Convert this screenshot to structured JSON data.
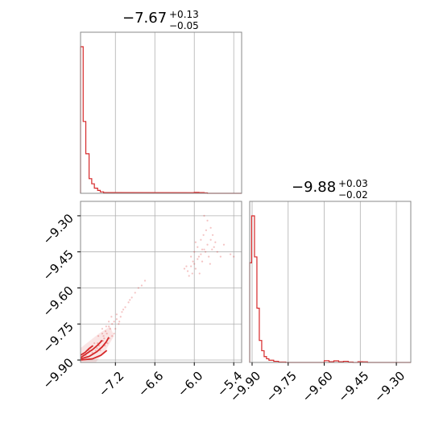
{
  "chart_data": {
    "type": "corner",
    "color": "#d62728",
    "grid": true,
    "params": [
      {
        "title": {
          "value": "−7.67",
          "plus": "+0.13",
          "minus": "−0.05"
        },
        "hist": {
          "bins": [
            [
              -7.73,
              -7.69,
              1.0
            ],
            [
              -7.69,
              -7.65,
              0.49
            ],
            [
              -7.65,
              -7.6,
              0.27
            ],
            [
              -7.6,
              -7.56,
              0.1
            ],
            [
              -7.56,
              -7.52,
              0.065
            ],
            [
              -7.52,
              -7.47,
              0.035
            ],
            [
              -7.47,
              -7.43,
              0.02
            ],
            [
              -7.43,
              -7.38,
              0.01
            ],
            [
              -7.38,
              -7.26,
              0.005
            ],
            [
              -6.1,
              -6.0,
              0.004
            ],
            [
              -6.0,
              -5.93,
              0.006
            ],
            [
              -5.93,
              -5.85,
              0.005
            ],
            [
              -5.85,
              -5.8,
              0.003
            ]
          ]
        },
        "range": [
          -7.73,
          -5.28
        ],
        "ticks": [
          -7.2,
          -6.6,
          -6.0,
          -5.4
        ],
        "tick_labels": [
          "−7.2",
          "−6.6",
          "−6.0",
          "−5.4"
        ]
      },
      {
        "title": {
          "value": "−9.88",
          "plus": "+0.03",
          "minus": "−0.02"
        },
        "hist": {
          "bins": [
            [
              -9.91,
              -9.902,
              0.68
            ],
            [
              -9.902,
              -9.89,
              1.0
            ],
            [
              -9.89,
              -9.88,
              0.72
            ],
            [
              -9.88,
              -9.87,
              0.37
            ],
            [
              -9.87,
              -9.86,
              0.15
            ],
            [
              -9.86,
              -9.85,
              0.08
            ],
            [
              -9.85,
              -9.84,
              0.04
            ],
            [
              -9.84,
              -9.83,
              0.025
            ],
            [
              -9.83,
              -9.81,
              0.015
            ],
            [
              -9.81,
              -9.79,
              0.008
            ],
            [
              -9.79,
              -9.76,
              0.003
            ],
            [
              -9.76,
              -9.7,
              0.0
            ],
            [
              -9.7,
              -9.6,
              0.0
            ],
            [
              -9.6,
              -9.58,
              0.012
            ],
            [
              -9.58,
              -9.56,
              0.005
            ],
            [
              -9.56,
              -9.54,
              0.011
            ],
            [
              -9.54,
              -9.52,
              0.005
            ],
            [
              -9.52,
              -9.5,
              0.008
            ],
            [
              -9.5,
              -9.48,
              0.003
            ],
            [
              -9.48,
              -9.46,
              0.0
            ],
            [
              -9.46,
              -9.44,
              0.005
            ],
            [
              -9.44,
              -9.42,
              0.004
            ]
          ]
        },
        "range": [
          -9.91,
          -9.24
        ],
        "ticks": [
          -9.9,
          -9.75,
          -9.6,
          -9.45,
          -9.3
        ],
        "tick_labels": [
          "−9.90",
          "−9.75",
          "−9.60",
          "−9.45",
          "−9.30"
        ]
      }
    ],
    "scatter": {
      "x_param": 0,
      "y_param": 1,
      "points": [
        [
          -7.4,
          -9.79
        ],
        [
          -7.38,
          -9.8
        ],
        [
          -7.42,
          -9.82
        ],
        [
          -7.35,
          -9.78
        ],
        [
          -7.45,
          -9.84
        ],
        [
          -7.3,
          -9.76
        ],
        [
          -7.33,
          -9.79
        ],
        [
          -7.28,
          -9.77
        ],
        [
          -7.25,
          -9.75
        ],
        [
          -7.22,
          -9.74
        ],
        [
          -7.2,
          -9.77
        ],
        [
          -7.18,
          -9.73
        ],
        [
          -7.15,
          -9.75
        ],
        [
          -7.25,
          -9.8
        ],
        [
          -7.32,
          -9.83
        ],
        [
          -7.37,
          -9.81
        ],
        [
          -7.5,
          -9.86
        ],
        [
          -7.55,
          -9.87
        ],
        [
          -7.48,
          -9.85
        ],
        [
          -7.43,
          -9.86
        ],
        [
          -7.36,
          -9.84
        ],
        [
          -7.29,
          -9.81
        ],
        [
          -7.22,
          -9.79
        ],
        [
          -7.12,
          -9.72
        ],
        [
          -7.05,
          -9.68
        ],
        [
          -7.0,
          -9.66
        ],
        [
          -6.95,
          -9.64
        ],
        [
          -6.9,
          -9.62
        ],
        [
          -6.85,
          -9.6
        ],
        [
          -7.1,
          -9.7
        ],
        [
          -7.08,
          -9.69
        ],
        [
          -6.98,
          -9.65
        ],
        [
          -6.8,
          -9.59
        ],
        [
          -6.75,
          -9.57
        ],
        [
          -7.3,
          -9.74
        ],
        [
          -7.4,
          -9.77
        ],
        [
          -7.6,
          -9.86
        ],
        [
          -7.65,
          -9.88
        ],
        [
          -7.58,
          -9.85
        ],
        [
          -7.52,
          -9.83
        ],
        [
          -7.46,
          -9.8
        ],
        [
          -7.34,
          -9.76
        ],
        [
          -7.26,
          -9.72
        ],
        [
          -7.18,
          -9.71
        ],
        [
          -7.14,
          -9.74
        ],
        [
          -7.68,
          -9.88
        ],
        [
          -7.62,
          -9.87
        ],
        [
          -7.56,
          -9.86
        ],
        [
          -7.47,
          -9.83
        ],
        [
          -7.39,
          -9.82
        ],
        [
          -6.1,
          -9.53
        ],
        [
          -6.05,
          -9.51
        ],
        [
          -6.0,
          -9.5
        ],
        [
          -5.95,
          -9.48
        ],
        [
          -5.9,
          -9.46
        ],
        [
          -5.85,
          -9.44
        ],
        [
          -5.8,
          -9.42
        ],
        [
          -5.75,
          -9.4
        ],
        [
          -5.7,
          -9.43
        ],
        [
          -5.65,
          -9.45
        ],
        [
          -6.08,
          -9.55
        ],
        [
          -6.02,
          -9.49
        ],
        [
          -5.98,
          -9.52
        ],
        [
          -5.93,
          -9.47
        ],
        [
          -5.88,
          -9.49
        ],
        [
          -5.83,
          -9.45
        ],
        [
          -5.78,
          -9.47
        ],
        [
          -5.73,
          -9.44
        ],
        [
          -5.68,
          -9.41
        ],
        [
          -5.95,
          -9.43
        ],
        [
          -6.0,
          -9.45
        ],
        [
          -5.9,
          -9.4
        ],
        [
          -5.86,
          -9.38
        ],
        [
          -5.82,
          -9.36
        ],
        [
          -5.8,
          -9.32
        ],
        [
          -5.85,
          -9.3
        ],
        [
          -5.75,
          -9.35
        ],
        [
          -6.05,
          -9.47
        ],
        [
          -6.12,
          -9.51
        ],
        [
          -5.92,
          -9.54
        ],
        [
          -5.6,
          -9.47
        ],
        [
          -5.55,
          -9.42
        ],
        [
          -5.45,
          -9.46
        ],
        [
          -5.4,
          -9.47
        ],
        [
          -6.15,
          -9.52
        ],
        [
          -5.98,
          -9.41
        ],
        [
          -5.88,
          -9.44
        ],
        [
          -5.76,
          -9.5
        ],
        [
          -5.72,
          -9.38
        ],
        [
          -6.03,
          -9.54
        ]
      ]
    },
    "contours": [
      [
        [
          -7.73,
          -9.895
        ],
        [
          -7.6,
          -9.885
        ],
        [
          -7.48,
          -9.865
        ],
        [
          -7.4,
          -9.845
        ],
        [
          -7.34,
          -9.825
        ],
        [
          -7.3,
          -9.805
        ]
      ],
      [
        [
          -7.73,
          -9.89
        ],
        [
          -7.62,
          -9.87
        ],
        [
          -7.54,
          -9.855
        ],
        [
          -7.47,
          -9.838
        ],
        [
          -7.4,
          -9.818
        ]
      ],
      [
        [
          -7.73,
          -9.88
        ],
        [
          -7.66,
          -9.868
        ],
        [
          -7.6,
          -9.852
        ],
        [
          -7.54,
          -9.84
        ]
      ],
      [
        [
          -7.73,
          -9.9
        ],
        [
          -7.55,
          -9.895
        ],
        [
          -7.42,
          -9.88
        ],
        [
          -7.33,
          -9.86
        ]
      ]
    ]
  }
}
